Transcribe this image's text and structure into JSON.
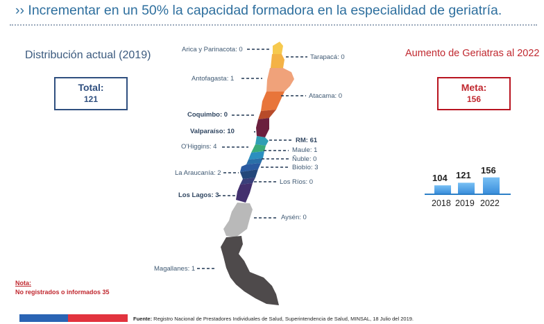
{
  "header": {
    "title": "›› Incrementar en un 50% la capacidad formadora en la especialidad de geriatría."
  },
  "left_panel": {
    "subtitle": "Distribución actual (2019)",
    "total_label": "Total:",
    "total_value": "121"
  },
  "right_panel": {
    "subtitle": "Aumento de Geriatras al 2022",
    "meta_label": "Meta:",
    "meta_value": "156"
  },
  "regions": [
    {
      "label": "Arica y Parinacota: 0",
      "color": "#f6c94e"
    },
    {
      "label": "Tarapacá: 0",
      "color": "#f4b246"
    },
    {
      "label": "Antofagasta: 1",
      "color": "#f0a27a"
    },
    {
      "label": "Atacama: 0",
      "color": "#e8753a"
    },
    {
      "label": "Coquimbo: 0",
      "color": "#b84b2a"
    },
    {
      "label": "Valparaíso: 10",
      "color": "#6b1f3e"
    },
    {
      "label": "RM: 61",
      "color": "#2f9fb5"
    },
    {
      "label": "O'Higgins: 4",
      "color": "#3aab7a"
    },
    {
      "label": "Maule: 1",
      "color": "#2b8fbf"
    },
    {
      "label": "Ñuble: 0",
      "color": "#2a6fa8"
    },
    {
      "label": "Biobío: 3",
      "color": "#2a5aa0"
    },
    {
      "label": "La Araucanía: 2",
      "color": "#24477a"
    },
    {
      "label": "Los Ríos: 0",
      "color": "#3a3f7a"
    },
    {
      "label": "Los Lagos: 3",
      "color": "#43306e"
    },
    {
      "label": "Aysén: 0",
      "color": "#b9b9b9"
    },
    {
      "label": "Magallanes: 1",
      "color": "#4e4a4b"
    }
  ],
  "chart_data": {
    "type": "bar",
    "categories": [
      "2018",
      "2019",
      "2022"
    ],
    "values": [
      104,
      121,
      156
    ],
    "title": "",
    "xlabel": "",
    "ylabel": "",
    "ylim": [
      0,
      160
    ],
    "bar_color": "#4aa3e8"
  },
  "note": {
    "heading": "Nota:",
    "text": "No registrados o informados 35"
  },
  "footer": {
    "source_label": "Fuente:",
    "source_text": " Registro Nacional de Prestadores Individuales de Salud, Superintendencia de Salud, MINSAL, 18 Julio del 2019."
  }
}
